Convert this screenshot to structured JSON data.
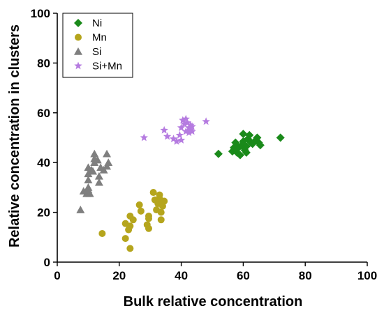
{
  "chart_data": {
    "type": "scatter",
    "title": "",
    "xlabel": "Bulk relative concentration",
    "ylabel": "Relative concentration in clusters",
    "xlim": [
      0,
      100
    ],
    "ylim": [
      0,
      100
    ],
    "xticks": [
      0,
      20,
      40,
      60,
      80,
      100
    ],
    "yticks": [
      0,
      20,
      40,
      60,
      80,
      100
    ],
    "grid": false,
    "legend_position": "top-left",
    "series": [
      {
        "name": "Ni",
        "marker": "diamond",
        "color": "#1a8a1a",
        "points": [
          [
            52,
            43.5
          ],
          [
            56.5,
            44.5
          ],
          [
            57,
            46
          ],
          [
            57.5,
            48
          ],
          [
            58,
            44
          ],
          [
            58.5,
            46
          ],
          [
            59,
            43
          ],
          [
            59.5,
            47
          ],
          [
            60,
            48.5
          ],
          [
            60,
            51.5
          ],
          [
            60.5,
            45
          ],
          [
            61,
            44
          ],
          [
            61,
            46.5
          ],
          [
            61.5,
            49.5
          ],
          [
            62,
            51
          ],
          [
            62.5,
            48
          ],
          [
            63,
            47.5
          ],
          [
            64,
            49
          ],
          [
            64.5,
            50
          ],
          [
            65,
            48
          ],
          [
            65.5,
            47
          ],
          [
            72,
            50
          ]
        ]
      },
      {
        "name": "Mn",
        "marker": "circle",
        "color": "#b5a51d",
        "points": [
          [
            14.5,
            11.5
          ],
          [
            22,
            9.5
          ],
          [
            22,
            15.5
          ],
          [
            23,
            13
          ],
          [
            23.5,
            5.5
          ],
          [
            23.5,
            14.5
          ],
          [
            23.5,
            18.5
          ],
          [
            24.5,
            17
          ],
          [
            26.5,
            23
          ],
          [
            27,
            20.5
          ],
          [
            29,
            15
          ],
          [
            29.5,
            13.5
          ],
          [
            29.5,
            17.5
          ],
          [
            29.5,
            18.5
          ],
          [
            31,
            28
          ],
          [
            31.5,
            25
          ],
          [
            32,
            21
          ],
          [
            32.5,
            23.5
          ],
          [
            33,
            25.5
          ],
          [
            33,
            27
          ],
          [
            33.5,
            20
          ],
          [
            33.5,
            17
          ],
          [
            34,
            22.5
          ],
          [
            34.5,
            24.5
          ]
        ]
      },
      {
        "name": "Si",
        "marker": "triangle",
        "color": "#7f7f7f",
        "points": [
          [
            7.5,
            21
          ],
          [
            8.5,
            28.5
          ],
          [
            9.5,
            27.5
          ],
          [
            10,
            30
          ],
          [
            10,
            29
          ],
          [
            10,
            33
          ],
          [
            10,
            35.5
          ],
          [
            10,
            38
          ],
          [
            10.5,
            27.5
          ],
          [
            11,
            37
          ],
          [
            11.5,
            36.5
          ],
          [
            12,
            40
          ],
          [
            12,
            41.5
          ],
          [
            12,
            43.5
          ],
          [
            13,
            41
          ],
          [
            13.5,
            32
          ],
          [
            13.5,
            34.5
          ],
          [
            14,
            38
          ],
          [
            15,
            37
          ],
          [
            16,
            43.5
          ],
          [
            16,
            38.5
          ],
          [
            16.5,
            40
          ]
        ]
      },
      {
        "name": "Si+Mn",
        "marker": "star",
        "color": "#b57be0",
        "points": [
          [
            28,
            50
          ],
          [
            34.5,
            53
          ],
          [
            35.5,
            50.5
          ],
          [
            37.5,
            49.5
          ],
          [
            38.5,
            48.5
          ],
          [
            39.5,
            51
          ],
          [
            40,
            49
          ],
          [
            40,
            54
          ],
          [
            40.5,
            57
          ],
          [
            41,
            55.5
          ],
          [
            41.5,
            52.5
          ],
          [
            41.5,
            57.5
          ],
          [
            42,
            56
          ],
          [
            42.5,
            54
          ],
          [
            42.5,
            52
          ],
          [
            43,
            55
          ],
          [
            43,
            53
          ],
          [
            43.5,
            52.5
          ],
          [
            43.5,
            54.5
          ],
          [
            48,
            56.5
          ]
        ]
      }
    ]
  }
}
